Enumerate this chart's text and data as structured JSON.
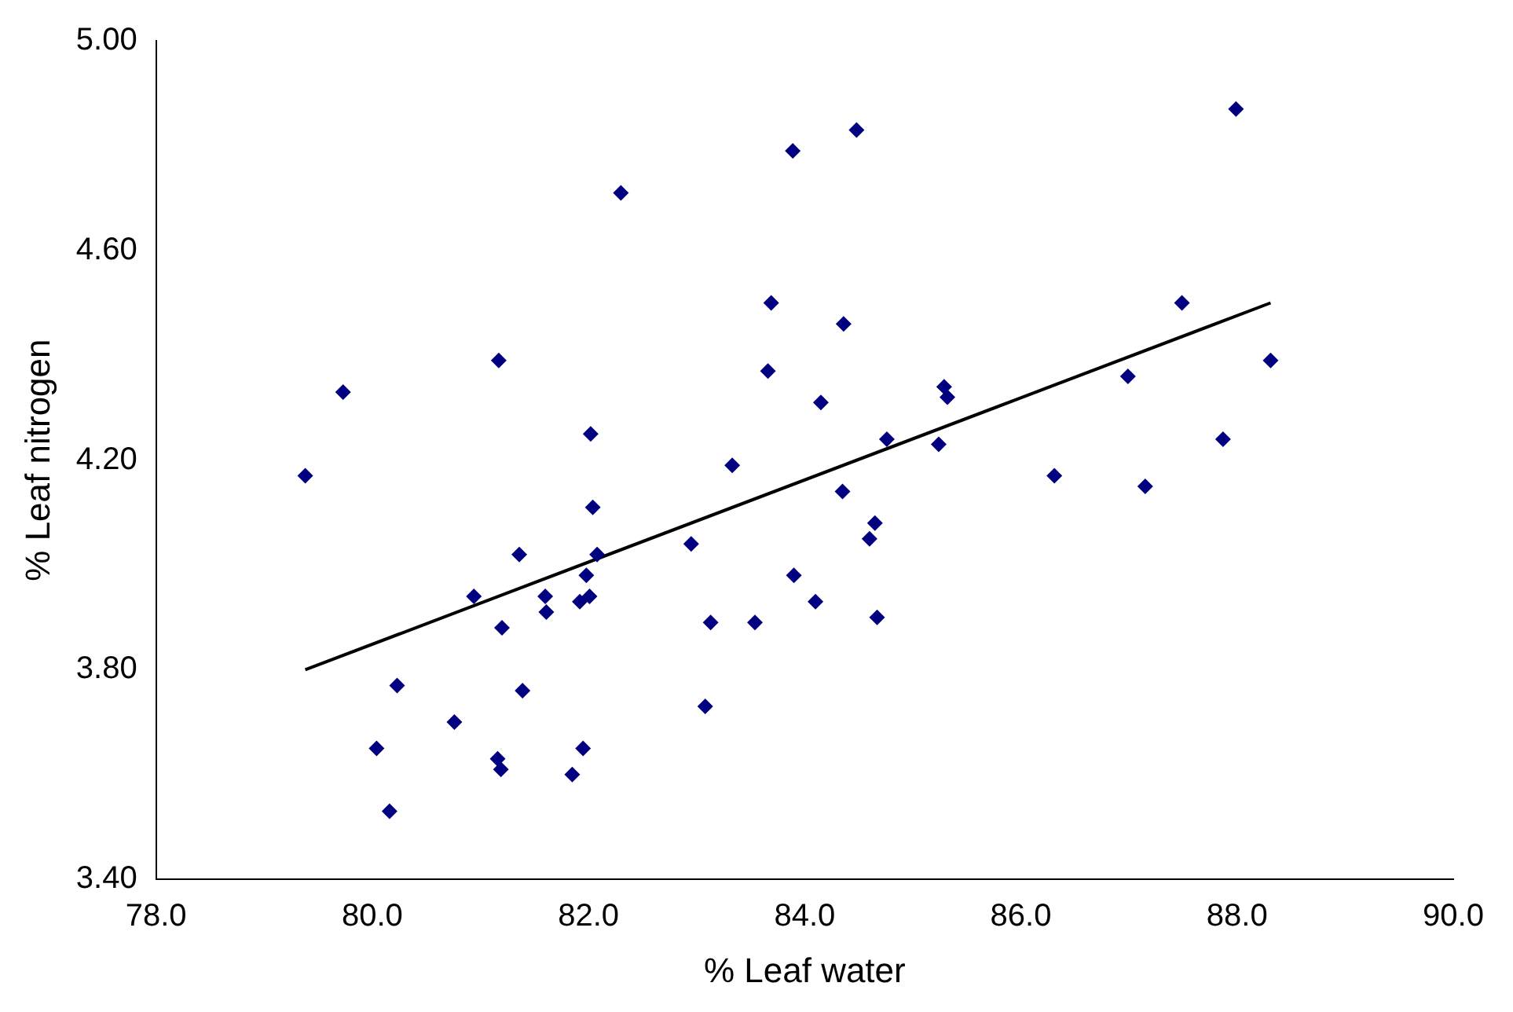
{
  "chart_data": {
    "type": "scatter",
    "xlabel": "% Leaf water",
    "ylabel": "% Leaf nitrogen",
    "xlim": [
      78,
      90
    ],
    "ylim": [
      3.4,
      5.0
    ],
    "xticks": [
      {
        "value": 78,
        "label": "78.0"
      },
      {
        "value": 80,
        "label": "80.0"
      },
      {
        "value": 82,
        "label": "82.0"
      },
      {
        "value": 84,
        "label": "84.0"
      },
      {
        "value": 86,
        "label": "86.0"
      },
      {
        "value": 88,
        "label": "88.0"
      },
      {
        "value": 90,
        "label": "90.0"
      }
    ],
    "yticks": [
      {
        "value": 3.4,
        "label": "3.40"
      },
      {
        "value": 3.8,
        "label": "3.80"
      },
      {
        "value": 4.2,
        "label": "4.20"
      },
      {
        "value": 4.6,
        "label": "4.60"
      },
      {
        "value": 5.0,
        "label": "5.00"
      }
    ],
    "grid": false,
    "legend": false,
    "marker": "diamond",
    "series": [
      {
        "color": "#000080",
        "x": [
          79.38,
          79.73,
          80.04,
          80.16,
          80.23,
          80.76,
          80.94,
          81.17,
          81.2,
          81.16,
          81.19,
          81.36,
          81.39,
          81.6,
          81.61,
          81.85,
          81.92,
          81.95,
          81.98,
          82.01,
          82.02,
          82.04,
          82.08,
          82.3,
          82.95,
          83.08,
          83.13,
          83.33,
          83.54,
          83.66,
          83.69,
          83.89,
          83.9,
          84.1,
          84.15,
          84.35,
          84.36,
          84.48,
          84.6,
          84.65,
          84.67,
          84.76,
          85.24,
          85.29,
          85.32,
          86.31,
          86.99,
          87.15,
          87.49,
          87.87,
          87.99,
          88.31
        ],
        "values": [
          4.17,
          4.33,
          3.65,
          3.53,
          3.77,
          3.7,
          3.94,
          4.39,
          3.88,
          3.63,
          3.61,
          4.02,
          3.76,
          3.94,
          3.91,
          3.6,
          3.93,
          3.65,
          3.98,
          3.94,
          4.25,
          4.11,
          4.02,
          4.71,
          4.04,
          3.73,
          3.89,
          4.19,
          3.89,
          4.37,
          4.5,
          4.79,
          3.98,
          3.93,
          4.31,
          4.14,
          4.46,
          4.83,
          4.05,
          4.08,
          3.9,
          4.24,
          4.23,
          4.34,
          4.32,
          4.17,
          4.36,
          4.15,
          4.5,
          4.24,
          4.87,
          4.39
        ]
      },
      {
        "type": "line",
        "color": "#000000",
        "marker": "none",
        "line_style": "solid",
        "x": [
          79.38,
          88.31
        ],
        "values": [
          3.8,
          4.5
        ]
      }
    ]
  }
}
